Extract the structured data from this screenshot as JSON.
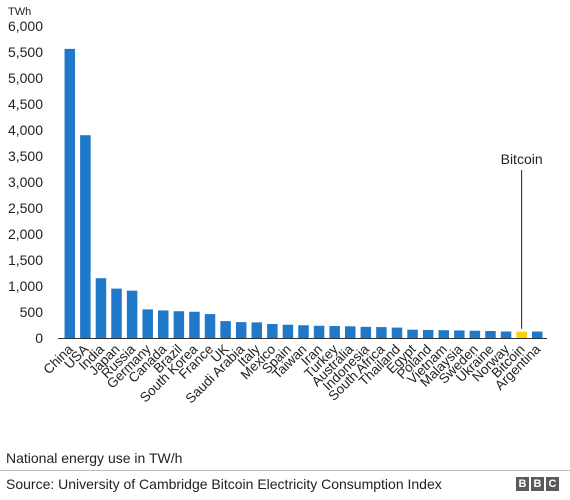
{
  "chart_data": {
    "type": "bar",
    "unit_label": "TWh",
    "categories": [
      "China",
      "USA",
      "India",
      "Japan",
      "Russia",
      "Germany",
      "Canada",
      "Brazil",
      "South Korea",
      "France",
      "UK",
      "Saudi Arabia",
      "Italy",
      "Mexico",
      "Spain",
      "Taiwan",
      "Iran",
      "Turkey",
      "Australia",
      "Indonesia",
      "South Africa",
      "Thailand",
      "Egypt",
      "Poland",
      "Vietnam",
      "Malaysia",
      "Sweden",
      "Ukraine",
      "Norway",
      "Bitcoin",
      "Argentina"
    ],
    "values": [
      5560,
      3900,
      1150,
      950,
      910,
      550,
      530,
      515,
      505,
      460,
      325,
      305,
      300,
      270,
      255,
      245,
      235,
      230,
      225,
      215,
      210,
      200,
      160,
      155,
      150,
      145,
      140,
      135,
      125,
      121,
      125
    ],
    "ylim": [
      0,
      6000
    ],
    "yticks": [
      0,
      500,
      1000,
      1500,
      2000,
      2500,
      3000,
      3500,
      4000,
      4500,
      5000,
      5500,
      6000
    ],
    "ytick_labels": [
      "0",
      "500",
      "1,000",
      "1,500",
      "2,000",
      "2,500",
      "3,000",
      "3,500",
      "4,000",
      "4,500",
      "5,000",
      "5,500",
      "6,000"
    ],
    "highlight": "Bitcoin",
    "annotation": {
      "text": "Bitcoin",
      "target": "Bitcoin"
    },
    "colors": {
      "bar": "#1f78c8",
      "highlight": "#f6d40a",
      "axis": "#333333"
    }
  },
  "footer": {
    "caption": "National energy use in TW/h",
    "source": "Source: University of Cambridge Bitcoin Electricity Consumption Index",
    "logo": [
      "B",
      "B",
      "C"
    ]
  }
}
